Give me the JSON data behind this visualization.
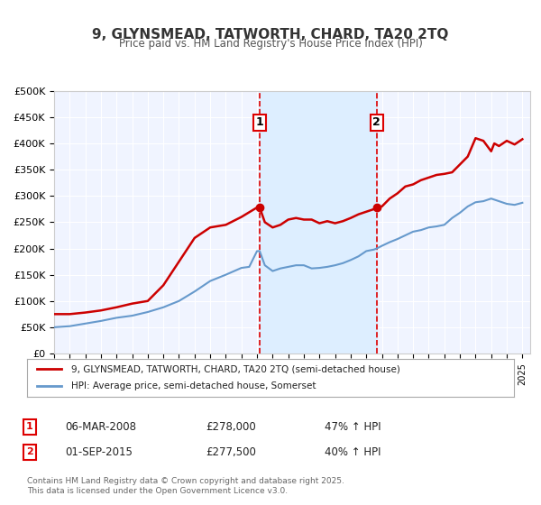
{
  "title": "9, GLYNSMEAD, TATWORTH, CHARD, TA20 2TQ",
  "subtitle": "Price paid vs. HM Land Registry's House Price Index (HPI)",
  "ylabel": "",
  "background_color": "#ffffff",
  "plot_bg_color": "#f0f4ff",
  "grid_color": "#ffffff",
  "red_line_color": "#cc0000",
  "blue_line_color": "#6699cc",
  "shade_color": "#ddeeff",
  "marker1_date": 2008.17,
  "marker2_date": 2015.67,
  "marker1_label": "1",
  "marker2_label": "2",
  "vline_color": "#dd0000",
  "legend_entries": [
    "9, GLYNSMEAD, TATWORTH, CHARD, TA20 2TQ (semi-detached house)",
    "HPI: Average price, semi-detached house, Somerset"
  ],
  "table_rows": [
    [
      "1",
      "06-MAR-2008",
      "£278,000",
      "47% ↑ HPI"
    ],
    [
      "2",
      "01-SEP-2015",
      "£277,500",
      "40% ↑ HPI"
    ]
  ],
  "footer": "Contains HM Land Registry data © Crown copyright and database right 2025.\nThis data is licensed under the Open Government Licence v3.0.",
  "ylim": [
    0,
    500000
  ],
  "xlim_start": 1995,
  "xlim_end": 2025.5,
  "red_data": {
    "years": [
      1995,
      1996,
      1997,
      1998,
      1999,
      2000,
      2001,
      2002,
      2003,
      2004,
      2005,
      2006,
      2007,
      2008.0,
      2008.17,
      2008.5,
      2009,
      2009.5,
      2010,
      2010.5,
      2011,
      2011.5,
      2012,
      2012.5,
      2013,
      2013.5,
      2014,
      2014.5,
      2015.0,
      2015.5,
      2015.67,
      2016,
      2016.5,
      2017,
      2017.5,
      2018,
      2018.5,
      2019,
      2019.5,
      2020,
      2020.5,
      2021,
      2021.5,
      2022,
      2022.5,
      2023,
      2023.2,
      2023.5,
      2024,
      2024.5,
      2025
    ],
    "values": [
      75000,
      75000,
      78000,
      82000,
      88000,
      95000,
      100000,
      130000,
      175000,
      220000,
      240000,
      245000,
      260000,
      278000,
      278000,
      250000,
      240000,
      245000,
      255000,
      258000,
      255000,
      255000,
      248000,
      252000,
      248000,
      252000,
      258000,
      265000,
      270000,
      275000,
      277500,
      280000,
      295000,
      305000,
      318000,
      322000,
      330000,
      335000,
      340000,
      342000,
      345000,
      360000,
      375000,
      410000,
      405000,
      385000,
      400000,
      395000,
      405000,
      398000,
      408000
    ]
  },
  "blue_data": {
    "years": [
      1995,
      1996,
      1997,
      1998,
      1999,
      2000,
      2001,
      2002,
      2003,
      2004,
      2005,
      2006,
      2007,
      2007.5,
      2008.0,
      2008.17,
      2008.5,
      2009,
      2009.5,
      2010,
      2010.5,
      2011,
      2011.5,
      2012,
      2012.5,
      2013,
      2013.5,
      2014,
      2014.5,
      2015.0,
      2015.5,
      2015.67,
      2016,
      2016.5,
      2017,
      2017.5,
      2018,
      2018.5,
      2019,
      2019.5,
      2020,
      2020.5,
      2021,
      2021.5,
      2022,
      2022.5,
      2023,
      2023.5,
      2024,
      2024.5,
      2025
    ],
    "values": [
      50000,
      52000,
      57000,
      62000,
      68000,
      72000,
      79000,
      88000,
      100000,
      118000,
      138000,
      150000,
      163000,
      165000,
      195000,
      195000,
      168000,
      157000,
      162000,
      165000,
      168000,
      168000,
      162000,
      163000,
      165000,
      168000,
      172000,
      178000,
      185000,
      195000,
      198000,
      200000,
      205000,
      212000,
      218000,
      225000,
      232000,
      235000,
      240000,
      242000,
      245000,
      258000,
      268000,
      280000,
      288000,
      290000,
      295000,
      290000,
      285000,
      283000,
      287000
    ]
  }
}
